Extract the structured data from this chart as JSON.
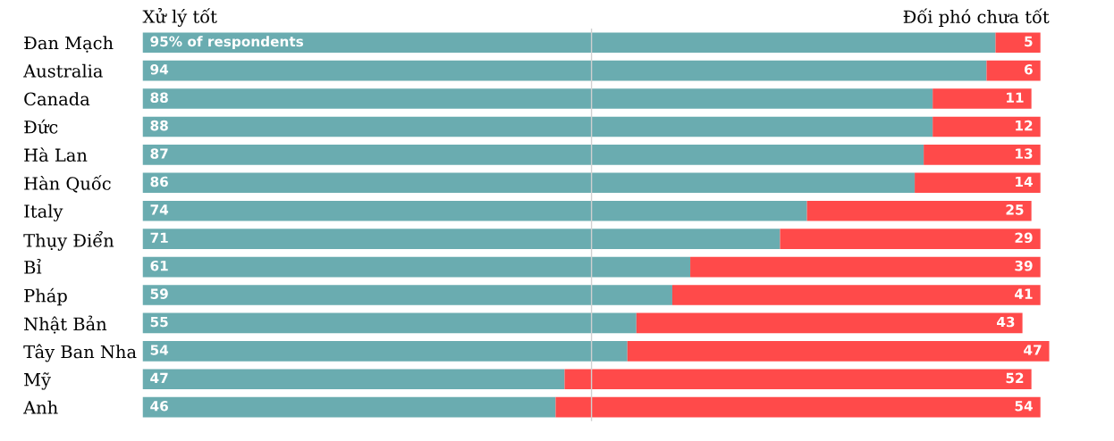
{
  "chart_data": {
    "type": "bar",
    "orientation": "horizontal",
    "stacked": true,
    "tick_labels": "y",
    "legend": false,
    "grid": false,
    "categories": [
      "Đan Mạch",
      "Australia",
      "Canada",
      "Đức",
      "Hà Lan",
      "Hàn Quốc",
      "Italy",
      "Thụy Điển",
      "Bỉ",
      "Pháp",
      "Nhật Bản",
      "Tây Ban Nha",
      "Mỹ",
      "Anh"
    ],
    "series": [
      {
        "name": "Xử lý tốt",
        "color": "#6aacb0",
        "values": [
          95,
          94,
          88,
          88,
          87,
          86,
          74,
          71,
          61,
          59,
          55,
          54,
          47,
          46
        ],
        "value_labels": [
          "95% of respondents",
          "94",
          "88",
          "88",
          "87",
          "86",
          "74",
          "71",
          "61",
          "59",
          "55",
          "54",
          "47",
          "46"
        ]
      },
      {
        "name": "Đối phó chưa tốt",
        "color": "#ff4a4a",
        "values": [
          5,
          6,
          11,
          12,
          13,
          14,
          25,
          29,
          39,
          41,
          43,
          47,
          52,
          54
        ],
        "value_labels": [
          "5",
          "6",
          "11",
          "12",
          "13",
          "14",
          "25",
          "29",
          "39",
          "41",
          "43",
          "47",
          "52",
          "54"
        ]
      }
    ],
    "ref_lines": [
      {
        "axis": "x",
        "value": 50,
        "color": "#d0d0d0"
      }
    ]
  }
}
